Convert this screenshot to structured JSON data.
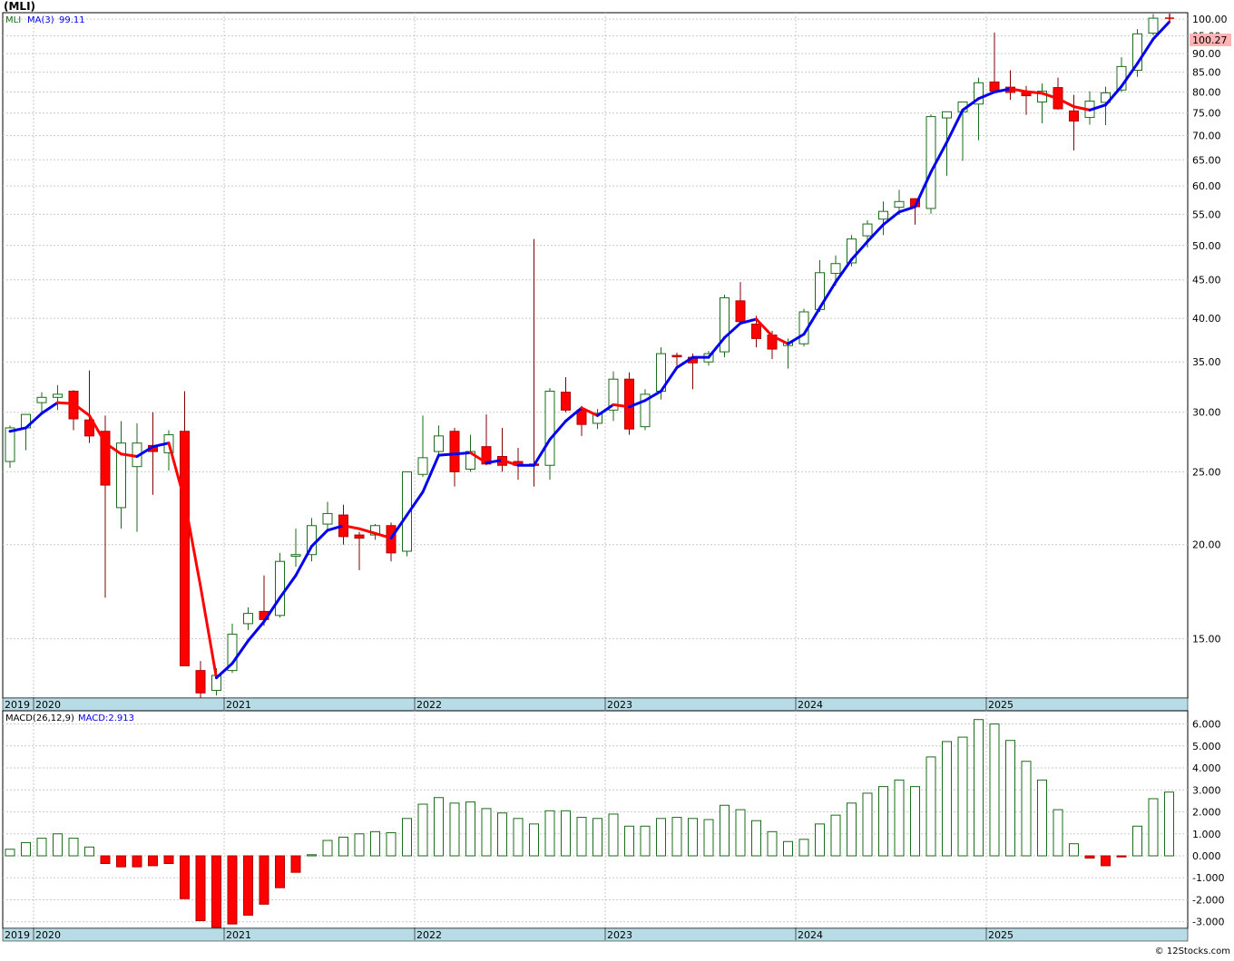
{
  "header": {
    "title": "(MLI)",
    "symbol_label": "MLI",
    "ma_label": "MA(3)",
    "ma_value": "99.11",
    "last_price": "100.27",
    "macd_label": "MACD(26,12,9)",
    "macd_value_label": "MACD:2.913",
    "footer": "© 12Stocks.com"
  },
  "colors": {
    "up_candle_stroke": "#1a6b1a",
    "down_candle_fill": "#ff0000",
    "ma_up": "#0000ee",
    "ma_down": "#ff0000",
    "macd_pos": "#1a6b1a",
    "macd_neg": "#ff0000",
    "axis_band": "#b8dce6",
    "price_tag": "#ffb3b3",
    "grid": "#c8c8c8"
  },
  "chart_data": [
    {
      "type": "candlestick",
      "name": "price",
      "scale": "log",
      "ylim": [
        12.5,
        102
      ],
      "y_ticks": [
        "15.00",
        "20.00",
        "25.00",
        "30.00",
        "35.00",
        "40.00",
        "45.00",
        "50.00",
        "55.00",
        "60.00",
        "65.00",
        "70.00",
        "75.00",
        "80.00",
        "85.00",
        "90.00",
        "95.00",
        "100.00"
      ],
      "x_year_labels": [
        "2019",
        "2020",
        "2021",
        "2022",
        "2023",
        "2024",
        "2025"
      ],
      "grid": true,
      "candles": [
        {
          "date": "2019-11",
          "o": 25.8,
          "h": 28.8,
          "l": 25.3,
          "c": 28.6
        },
        {
          "date": "2019-12",
          "o": 28.6,
          "h": 29.7,
          "l": 26.7,
          "c": 29.8
        },
        {
          "date": "2020-01",
          "o": 30.9,
          "h": 31.9,
          "l": 29.8,
          "c": 31.4
        },
        {
          "date": "2020-02",
          "o": 31.4,
          "h": 32.6,
          "l": 30.2,
          "c": 31.7
        },
        {
          "date": "2020-03",
          "o": 32.0,
          "h": 32.1,
          "l": 28.4,
          "c": 29.4
        },
        {
          "date": "2020-04",
          "o": 29.3,
          "h": 34.1,
          "l": 27.3,
          "c": 27.9
        },
        {
          "date": "2020-05",
          "o": 28.3,
          "h": 29.7,
          "l": 17.0,
          "c": 24.0
        },
        {
          "date": "2020-06",
          "o": 22.4,
          "h": 29.2,
          "l": 21.0,
          "c": 27.3
        },
        {
          "date": "2020-07",
          "o": 25.4,
          "h": 29.0,
          "l": 20.8,
          "c": 27.3
        },
        {
          "date": "2020-08",
          "o": 27.1,
          "h": 30.0,
          "l": 23.3,
          "c": 26.6
        },
        {
          "date": "2020-09",
          "o": 26.5,
          "h": 28.4,
          "l": 25.1,
          "c": 28.0
        },
        {
          "date": "2020-10",
          "o": 28.3,
          "h": 32.0,
          "l": 13.8,
          "c": 13.8
        },
        {
          "date": "2020-11",
          "o": 13.6,
          "h": 14.0,
          "l": 12.5,
          "c": 12.7
        },
        {
          "date": "2020-12",
          "o": 12.8,
          "h": 13.7,
          "l": 12.6,
          "c": 13.4
        },
        {
          "date": "2021-01",
          "o": 13.6,
          "h": 15.7,
          "l": 13.5,
          "c": 15.2
        },
        {
          "date": "2021-02",
          "o": 15.7,
          "h": 16.5,
          "l": 15.4,
          "c": 16.2
        },
        {
          "date": "2021-03",
          "o": 16.3,
          "h": 18.2,
          "l": 15.6,
          "c": 15.9
        },
        {
          "date": "2021-04",
          "o": 16.1,
          "h": 19.5,
          "l": 16.0,
          "c": 19.0
        },
        {
          "date": "2021-05",
          "o": 19.3,
          "h": 21.0,
          "l": 18.7,
          "c": 19.4
        },
        {
          "date": "2021-06",
          "o": 19.4,
          "h": 21.7,
          "l": 19.0,
          "c": 21.2
        },
        {
          "date": "2021-07",
          "o": 21.3,
          "h": 22.8,
          "l": 21.0,
          "c": 22.0
        },
        {
          "date": "2021-08",
          "o": 21.9,
          "h": 22.6,
          "l": 20.0,
          "c": 20.5
        },
        {
          "date": "2021-09",
          "o": 20.6,
          "h": 20.8,
          "l": 18.5,
          "c": 20.4
        },
        {
          "date": "2021-10",
          "o": 20.6,
          "h": 21.3,
          "l": 20.3,
          "c": 21.2
        },
        {
          "date": "2021-11",
          "o": 21.2,
          "h": 21.4,
          "l": 19.0,
          "c": 19.5
        },
        {
          "date": "2021-12",
          "o": 19.6,
          "h": 25.0,
          "l": 19.3,
          "c": 25.0
        },
        {
          "date": "2022-01",
          "o": 24.8,
          "h": 29.7,
          "l": 24.6,
          "c": 26.1
        },
        {
          "date": "2022-02",
          "o": 26.6,
          "h": 28.8,
          "l": 26.1,
          "c": 27.9
        },
        {
          "date": "2022-03",
          "o": 28.3,
          "h": 28.6,
          "l": 23.9,
          "c": 25.0
        },
        {
          "date": "2022-04",
          "o": 25.2,
          "h": 28.0,
          "l": 25.0,
          "c": 26.6
        },
        {
          "date": "2022-05",
          "o": 27.0,
          "h": 29.8,
          "l": 25.5,
          "c": 25.6
        },
        {
          "date": "2022-06",
          "o": 26.2,
          "h": 28.6,
          "l": 25.0,
          "c": 25.5
        },
        {
          "date": "2022-07",
          "o": 25.8,
          "h": 26.9,
          "l": 24.4,
          "c": 25.5
        },
        {
          "date": "2022-08",
          "o": 25.6,
          "h": 51.0,
          "l": 23.9,
          "c": 25.5
        },
        {
          "date": "2022-09",
          "o": 25.5,
          "h": 32.3,
          "l": 24.4,
          "c": 32.0
        },
        {
          "date": "2022-10",
          "o": 31.9,
          "h": 33.4,
          "l": 30.0,
          "c": 30.2
        },
        {
          "date": "2022-11",
          "o": 30.2,
          "h": 30.6,
          "l": 27.9,
          "c": 28.9
        },
        {
          "date": "2022-12",
          "o": 29.0,
          "h": 30.3,
          "l": 28.5,
          "c": 29.9
        },
        {
          "date": "2023-01",
          "o": 30.2,
          "h": 34.0,
          "l": 29.2,
          "c": 33.2
        },
        {
          "date": "2023-02",
          "o": 33.2,
          "h": 33.9,
          "l": 28.0,
          "c": 28.5
        },
        {
          "date": "2023-03",
          "o": 28.7,
          "h": 32.2,
          "l": 28.4,
          "c": 31.7
        },
        {
          "date": "2023-04",
          "o": 32.0,
          "h": 36.6,
          "l": 31.2,
          "c": 35.9
        },
        {
          "date": "2023-05",
          "o": 35.7,
          "h": 36.0,
          "l": 34.6,
          "c": 35.6
        },
        {
          "date": "2023-06",
          "o": 35.5,
          "h": 35.9,
          "l": 32.2,
          "c": 34.9
        },
        {
          "date": "2023-07",
          "o": 35.0,
          "h": 36.2,
          "l": 34.6,
          "c": 35.9
        },
        {
          "date": "2023-08",
          "o": 36.1,
          "h": 43.0,
          "l": 35.5,
          "c": 42.6
        },
        {
          "date": "2023-09",
          "o": 42.2,
          "h": 44.7,
          "l": 39.6,
          "c": 39.6
        },
        {
          "date": "2023-10",
          "o": 39.3,
          "h": 40.3,
          "l": 36.6,
          "c": 37.6
        },
        {
          "date": "2023-11",
          "o": 38.0,
          "h": 38.5,
          "l": 35.3,
          "c": 36.4
        },
        {
          "date": "2023-12",
          "o": 36.8,
          "h": 37.6,
          "l": 34.3,
          "c": 37.1
        },
        {
          "date": "2024-01",
          "o": 37.0,
          "h": 41.2,
          "l": 36.7,
          "c": 40.8
        },
        {
          "date": "2024-02",
          "o": 41.1,
          "h": 47.8,
          "l": 40.8,
          "c": 46.0
        },
        {
          "date": "2024-03",
          "o": 45.9,
          "h": 48.5,
          "l": 44.2,
          "c": 47.3
        },
        {
          "date": "2024-04",
          "o": 47.4,
          "h": 51.6,
          "l": 46.9,
          "c": 51.0
        },
        {
          "date": "2024-05",
          "o": 51.5,
          "h": 54.0,
          "l": 49.7,
          "c": 53.4
        },
        {
          "date": "2024-06",
          "o": 54.2,
          "h": 57.2,
          "l": 51.6,
          "c": 55.5
        },
        {
          "date": "2024-07",
          "o": 56.2,
          "h": 59.3,
          "l": 54.9,
          "c": 57.2
        },
        {
          "date": "2024-08",
          "o": 57.7,
          "h": 57.8,
          "l": 53.3,
          "c": 56.3
        },
        {
          "date": "2024-09",
          "o": 56.0,
          "h": 74.7,
          "l": 55.1,
          "c": 74.2
        },
        {
          "date": "2024-10",
          "o": 73.9,
          "h": 75.3,
          "l": 61.9,
          "c": 75.3
        },
        {
          "date": "2024-11",
          "o": 75.3,
          "h": 77.7,
          "l": 64.8,
          "c": 77.6
        },
        {
          "date": "2024-12",
          "o": 77.1,
          "h": 83.6,
          "l": 69.0,
          "c": 82.3
        },
        {
          "date": "2025-01",
          "o": 82.5,
          "h": 96.0,
          "l": 79.8,
          "c": 80.2
        },
        {
          "date": "2025-02",
          "o": 81.2,
          "h": 85.5,
          "l": 78.1,
          "c": 79.9
        },
        {
          "date": "2025-03",
          "o": 80.0,
          "h": 81.5,
          "l": 74.6,
          "c": 79.1
        },
        {
          "date": "2025-04",
          "o": 77.6,
          "h": 82.1,
          "l": 72.7,
          "c": 80.2
        },
        {
          "date": "2025-05",
          "o": 81.1,
          "h": 83.6,
          "l": 75.8,
          "c": 76.0
        },
        {
          "date": "2025-06",
          "o": 75.5,
          "h": 79.3,
          "l": 66.9,
          "c": 73.2
        },
        {
          "date": "2025-07",
          "o": 74.0,
          "h": 80.2,
          "l": 72.4,
          "c": 77.8
        },
        {
          "date": "2025-08",
          "o": 77.5,
          "h": 81.3,
          "l": 72.3,
          "c": 79.8
        },
        {
          "date": "2025-09",
          "o": 80.5,
          "h": 89.0,
          "l": 80.0,
          "c": 86.5
        },
        {
          "date": "2025-10",
          "o": 85.5,
          "h": 97.0,
          "l": 83.8,
          "c": 95.6
        },
        {
          "date": "2025-11",
          "o": 95.8,
          "h": 101.6,
          "l": 95.2,
          "c": 100.3
        }
      ],
      "ma": [
        28.3,
        28.6,
        29.9,
        30.9,
        30.8,
        29.7,
        27.3,
        26.4,
        26.2,
        27.0,
        27.3,
        22.9,
        17.6,
        13.3,
        13.9,
        14.9,
        15.8,
        17.0,
        18.2,
        19.9,
        20.9,
        21.2,
        21.0,
        20.7,
        20.4,
        21.9,
        23.5,
        26.3,
        26.4,
        26.5,
        25.7,
        25.9,
        25.5,
        25.5,
        27.6,
        29.2,
        30.4,
        29.7,
        30.7,
        30.5,
        31.1,
        32.0,
        34.4,
        35.5,
        35.5,
        37.7,
        39.4,
        39.9,
        37.9,
        37.0,
        38.1,
        41.3,
        44.7,
        47.9,
        50.6,
        53.3,
        55.4,
        56.3,
        62.6,
        68.6,
        75.7,
        78.4,
        80.0,
        80.8,
        80.1,
        79.7,
        78.4,
        76.5,
        75.7,
        76.9,
        81.4,
        87.3,
        94.1,
        99.1
      ]
    },
    {
      "type": "bar",
      "name": "MACD",
      "ylim": [
        -3.3,
        6.6
      ],
      "y_ticks": [
        "-3.000",
        "-2.000",
        "-1.000",
        "0.000",
        "1.000",
        "2.000",
        "3.000",
        "4.000",
        "5.000",
        "6.000"
      ],
      "x_year_labels": [
        "2019",
        "2020",
        "2021",
        "2022",
        "2023",
        "2024",
        "2025"
      ],
      "values": [
        0.3,
        0.6,
        0.8,
        1.0,
        0.8,
        0.4,
        -0.35,
        -0.5,
        -0.5,
        -0.45,
        -0.35,
        -1.95,
        -2.95,
        -3.25,
        -3.1,
        -2.7,
        -2.2,
        -1.45,
        -0.75,
        0.05,
        0.7,
        0.85,
        1.0,
        1.1,
        1.05,
        1.7,
        2.35,
        2.65,
        2.4,
        2.45,
        2.15,
        1.95,
        1.7,
        1.45,
        2.05,
        2.05,
        1.75,
        1.7,
        1.9,
        1.35,
        1.35,
        1.7,
        1.75,
        1.7,
        1.65,
        2.3,
        2.1,
        1.6,
        1.1,
        0.65,
        0.75,
        1.45,
        1.85,
        2.4,
        2.85,
        3.15,
        3.45,
        3.15,
        4.5,
        5.2,
        5.4,
        6.2,
        6.0,
        5.25,
        4.3,
        3.45,
        2.1,
        0.55,
        -0.1,
        -0.45,
        -0.05,
        1.35,
        2.6,
        2.9
      ]
    }
  ]
}
